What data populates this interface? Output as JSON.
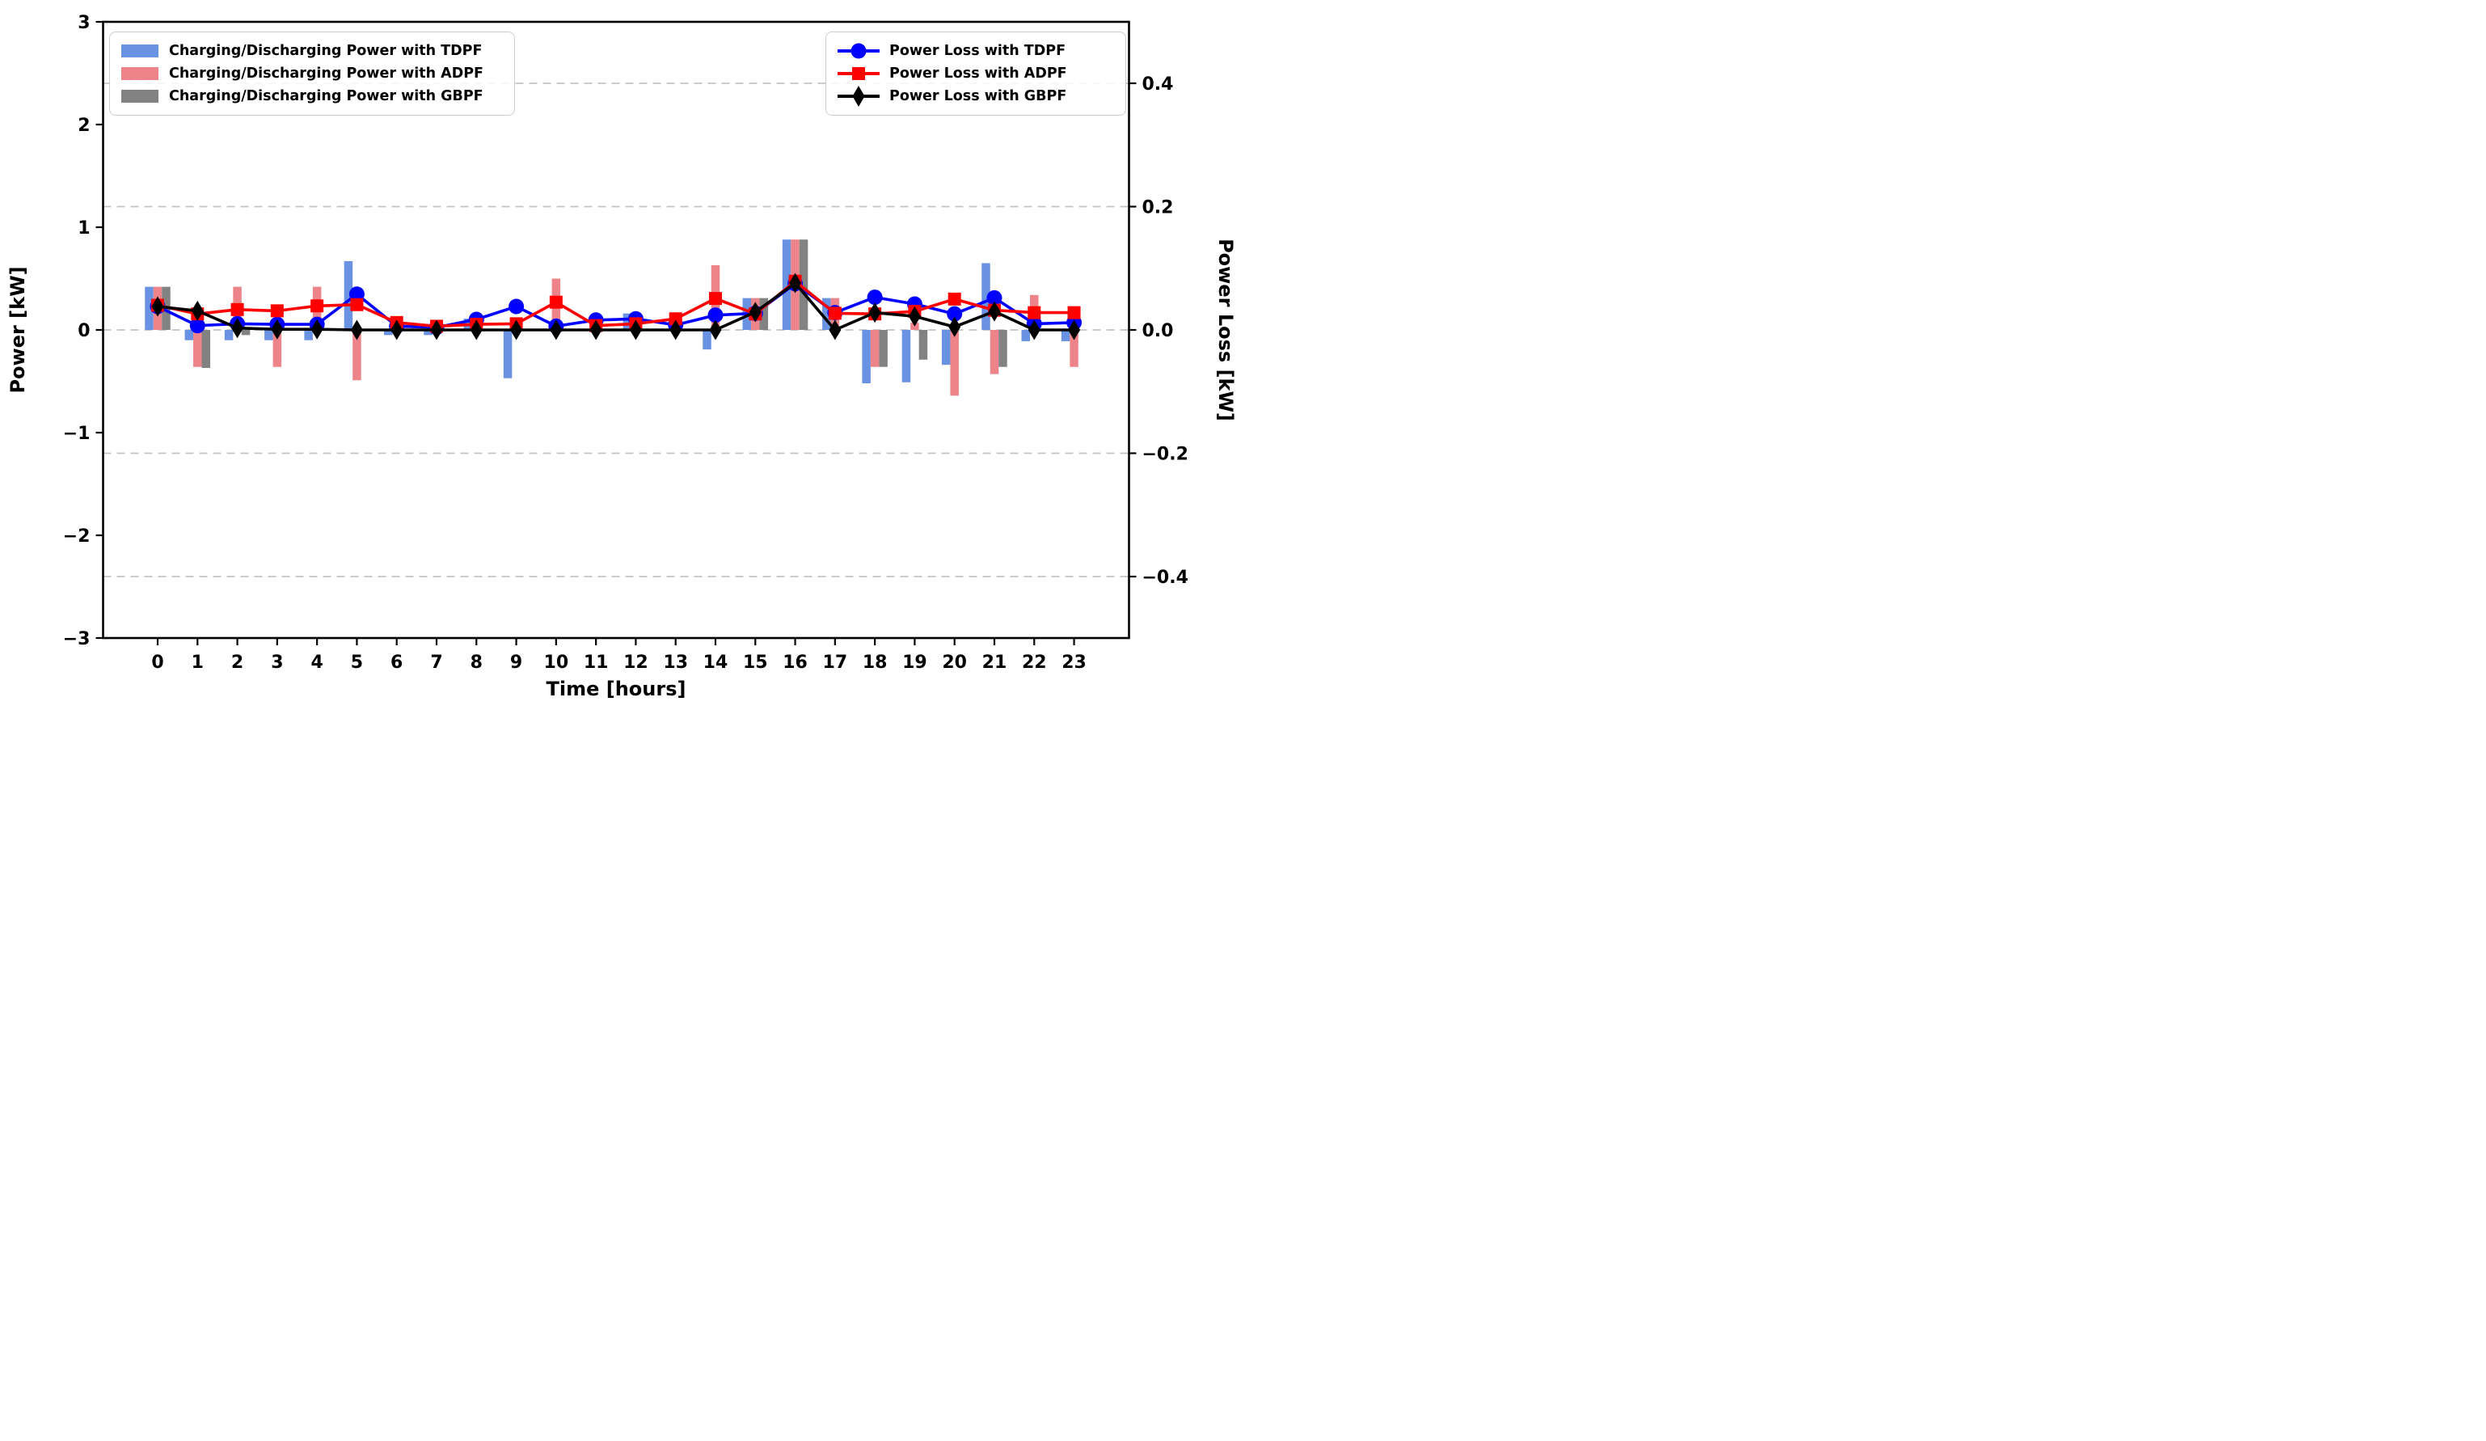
{
  "figure": {
    "background": "#ffffff"
  },
  "axes": {
    "x": {
      "title": "Time [hours]",
      "tick_labels": [
        "0",
        "1",
        "2",
        "3",
        "4",
        "5",
        "6",
        "7",
        "8",
        "9",
        "10",
        "11",
        "12",
        "13",
        "14",
        "15",
        "16",
        "17",
        "18",
        "19",
        "20",
        "21",
        "22",
        "23"
      ]
    },
    "y_left": {
      "title": "Power [kW]",
      "tick_labels": [
        "3",
        "2",
        "1",
        "0",
        "−1",
        "−2",
        "−3"
      ],
      "tick_values": [
        3,
        2,
        1,
        0,
        -1,
        -2,
        -3
      ],
      "lim": [
        -3,
        3
      ]
    },
    "y_right": {
      "title": "Power Loss [kW]",
      "tick_labels": [
        "0.4",
        "0.2",
        "0.0",
        "−0.2",
        "−0.4"
      ],
      "tick_values": [
        0.4,
        0.2,
        0.0,
        -0.2,
        -0.4
      ],
      "lim": [
        -0.5,
        0.5
      ]
    },
    "grid": {
      "color": "#c4c4c4",
      "on": true,
      "style": "dashed",
      "values_right": [
        0.4,
        0.2,
        0.0,
        -0.2,
        -0.4
      ]
    }
  },
  "legend_bars": {
    "items": [
      {
        "label": "Charging/Discharging Power with TDPF",
        "color": "#6992e3"
      },
      {
        "label": "Charging/Discharging Power with ADPF",
        "color": "#ed8489"
      },
      {
        "label": "Charging/Discharging Power with GBPF",
        "color": "#828282"
      }
    ]
  },
  "legend_lines": {
    "items": [
      {
        "label": "Power Loss with TDPF",
        "color": "#0000ff",
        "marker": "circle"
      },
      {
        "label": "Power Loss with ADPF",
        "color": "#ff0000",
        "marker": "square"
      },
      {
        "label": "Power Loss with GBPF",
        "color": "#000000",
        "marker": "diamond"
      }
    ]
  },
  "chart_data": {
    "type": "bar+line",
    "x": [
      0,
      1,
      2,
      3,
      4,
      5,
      6,
      7,
      8,
      9,
      10,
      11,
      12,
      13,
      14,
      15,
      16,
      17,
      18,
      19,
      20,
      21,
      22,
      23
    ],
    "bar_series": [
      {
        "name": "Charging/Discharging Power with TDPF",
        "axis": "left",
        "color": "#6992e3",
        "values": [
          0.42,
          -0.1,
          -0.1,
          -0.1,
          -0.1,
          0.67,
          -0.05,
          -0.05,
          0.11,
          -0.47,
          0,
          0,
          0.16,
          0,
          -0.19,
          0.31,
          0.88,
          0.31,
          -0.52,
          -0.51,
          -0.34,
          0.65,
          -0.11,
          -0.11
        ]
      },
      {
        "name": "Charging/Discharging Power with ADPF",
        "axis": "left",
        "color": "#ed8489",
        "values": [
          0.42,
          -0.36,
          0.42,
          -0.36,
          0.42,
          -0.49,
          0,
          0,
          0,
          0,
          0.5,
          0,
          0,
          0.15,
          0.63,
          0.31,
          0.88,
          0.31,
          -0.36,
          0.07,
          -0.64,
          -0.43,
          0.34,
          -0.36
        ]
      },
      {
        "name": "Charging/Discharging Power with GBPF",
        "axis": "left",
        "color": "#828282",
        "values": [
          0.42,
          -0.37,
          -0.05,
          0,
          0,
          0,
          0,
          0,
          0,
          0,
          0,
          0,
          0,
          0,
          0,
          0.31,
          0.88,
          0,
          -0.36,
          -0.29,
          0,
          -0.36,
          0,
          0
        ]
      }
    ],
    "line_series": [
      {
        "name": "Power Loss with TDPF",
        "axis": "right",
        "color": "#0000ff",
        "marker": "circle",
        "values": [
          0.038,
          0.007,
          0.01,
          0.009,
          0.009,
          0.058,
          0.006,
          0.004,
          0.017,
          0.038,
          0.006,
          0.016,
          0.018,
          0.008,
          0.024,
          0.027,
          0.075,
          0.028,
          0.053,
          0.042,
          0.026,
          0.052,
          0.01,
          0.012
        ]
      },
      {
        "name": "Power Loss with ADPF",
        "axis": "right",
        "color": "#ff0000",
        "marker": "square",
        "values": [
          0.04,
          0.026,
          0.033,
          0.031,
          0.039,
          0.041,
          0.012,
          0.006,
          0.009,
          0.01,
          0.045,
          0.007,
          0.01,
          0.018,
          0.051,
          0.026,
          0.079,
          0.027,
          0.026,
          0.03,
          0.05,
          0.032,
          0.028,
          0.028
        ]
      },
      {
        "name": "Power Loss with GBPF",
        "axis": "right",
        "color": "#000000",
        "marker": "diamond",
        "values": [
          0.038,
          0.031,
          0.003,
          0.001,
          0.001,
          0.0,
          0.0,
          0.0,
          0.0,
          0.0,
          0.0,
          0.0,
          0.0,
          0.0,
          0.0,
          0.029,
          0.076,
          0.0,
          0.028,
          0.022,
          0.005,
          0.03,
          0.0,
          0.0
        ]
      }
    ],
    "title": "",
    "xlabel": "Time [hours]",
    "ylabel_left": "Power [kW]",
    "ylabel_right": "Power Loss [kW]",
    "legend_positions": {
      "bars": "upper left",
      "lines": "upper right"
    }
  }
}
